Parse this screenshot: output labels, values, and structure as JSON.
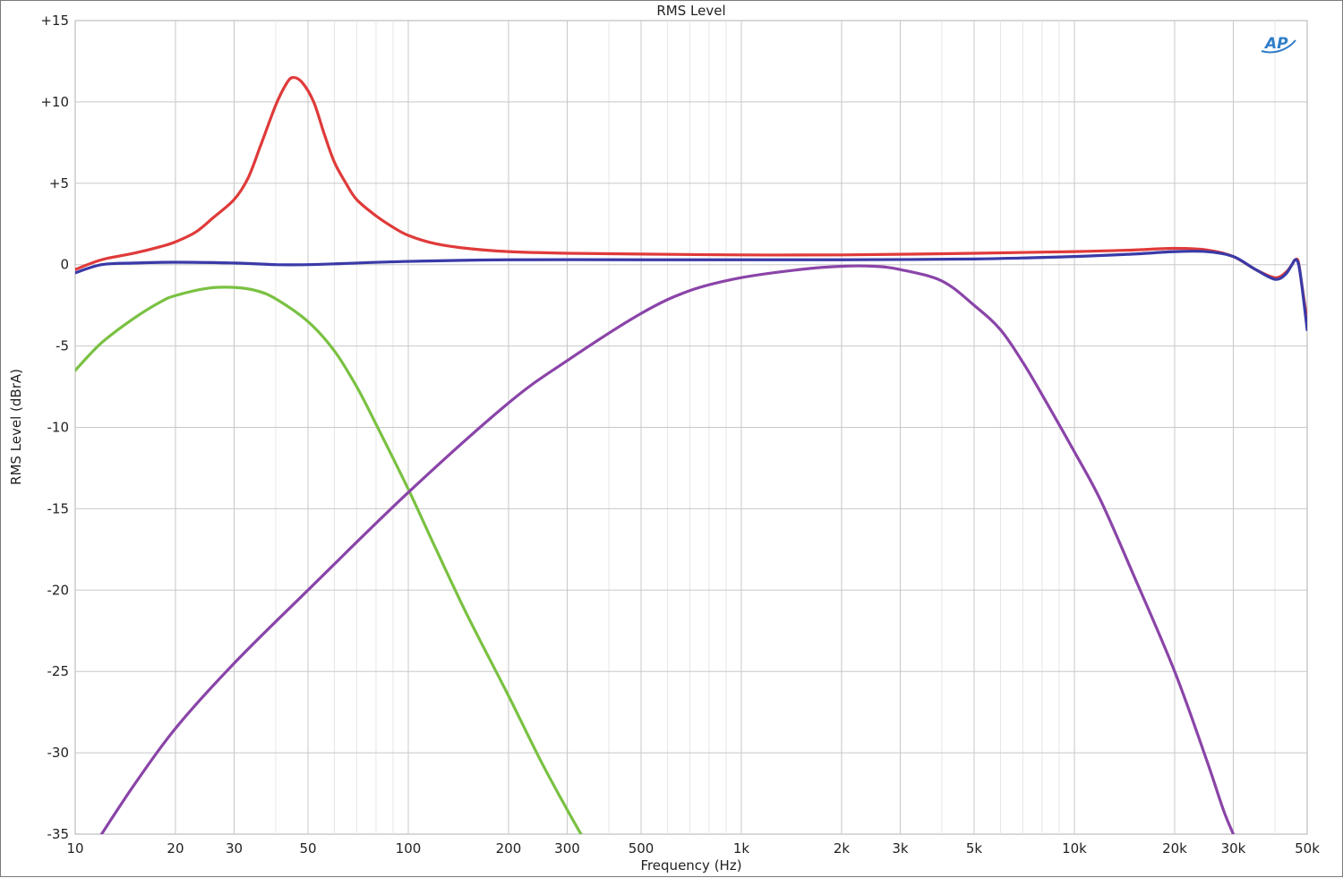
{
  "chart_data": {
    "type": "line",
    "title": "RMS Level",
    "xlabel": "Frequency (Hz)",
    "ylabel": "RMS Level (dBrA)",
    "x_scale": "log",
    "xlim": [
      10,
      50000
    ],
    "ylim": [
      -35,
      15
    ],
    "grid": true,
    "x_ticks": [
      {
        "value": 10,
        "label": "10"
      },
      {
        "value": 20,
        "label": "20"
      },
      {
        "value": 30,
        "label": "30"
      },
      {
        "value": 50,
        "label": "50"
      },
      {
        "value": 100,
        "label": "100"
      },
      {
        "value": 200,
        "label": "200"
      },
      {
        "value": 300,
        "label": "300"
      },
      {
        "value": 500,
        "label": "500"
      },
      {
        "value": 1000,
        "label": "1k"
      },
      {
        "value": 2000,
        "label": "2k"
      },
      {
        "value": 3000,
        "label": "3k"
      },
      {
        "value": 5000,
        "label": "5k"
      },
      {
        "value": 10000,
        "label": "10k"
      },
      {
        "value": 20000,
        "label": "20k"
      },
      {
        "value": 30000,
        "label": "30k"
      },
      {
        "value": 50000,
        "label": "50k"
      }
    ],
    "y_ticks": [
      {
        "value": 15,
        "label": "+15"
      },
      {
        "value": 10,
        "label": "+10"
      },
      {
        "value": 5,
        "label": "+5"
      },
      {
        "value": 0,
        "label": "0"
      },
      {
        "value": -5,
        "label": "-5"
      },
      {
        "value": -10,
        "label": "-10"
      },
      {
        "value": -15,
        "label": "-15"
      },
      {
        "value": -20,
        "label": "-20"
      },
      {
        "value": -25,
        "label": "-25"
      },
      {
        "value": -30,
        "label": "-30"
      },
      {
        "value": -35,
        "label": "-35"
      }
    ],
    "series": [
      {
        "color": "#e03a3a",
        "points": [
          [
            10,
            -0.3
          ],
          [
            12,
            0.3
          ],
          [
            15,
            0.7
          ],
          [
            18,
            1.1
          ],
          [
            20,
            1.4
          ],
          [
            23,
            2.0
          ],
          [
            26,
            2.9
          ],
          [
            30,
            4.0
          ],
          [
            33,
            5.3
          ],
          [
            36,
            7.3
          ],
          [
            40,
            9.8
          ],
          [
            43,
            11.1
          ],
          [
            45,
            11.5
          ],
          [
            48,
            11.2
          ],
          [
            52,
            10.0
          ],
          [
            56,
            8.0
          ],
          [
            60,
            6.3
          ],
          [
            65,
            5.0
          ],
          [
            70,
            4.0
          ],
          [
            80,
            3.0
          ],
          [
            90,
            2.3
          ],
          [
            100,
            1.8
          ],
          [
            120,
            1.3
          ],
          [
            150,
            1.0
          ],
          [
            200,
            0.8
          ],
          [
            300,
            0.7
          ],
          [
            500,
            0.65
          ],
          [
            1000,
            0.6
          ],
          [
            2000,
            0.6
          ],
          [
            5000,
            0.7
          ],
          [
            10000,
            0.8
          ],
          [
            15000,
            0.9
          ],
          [
            20000,
            1.0
          ],
          [
            25000,
            0.9
          ],
          [
            30000,
            0.5
          ],
          [
            35000,
            -0.3
          ],
          [
            40000,
            -0.8
          ],
          [
            43000,
            -0.5
          ],
          [
            45000,
            0.0
          ],
          [
            46000,
            0.3
          ],
          [
            47000,
            0.2
          ],
          [
            48000,
            -1.0
          ],
          [
            50000,
            -3.5
          ]
        ]
      },
      {
        "color": "#3a3aa8",
        "points": [
          [
            10,
            -0.5
          ],
          [
            12,
            0.0
          ],
          [
            15,
            0.1
          ],
          [
            20,
            0.15
          ],
          [
            30,
            0.1
          ],
          [
            40,
            0.0
          ],
          [
            50,
            0.0
          ],
          [
            60,
            0.05
          ],
          [
            100,
            0.2
          ],
          [
            200,
            0.3
          ],
          [
            500,
            0.3
          ],
          [
            1000,
            0.3
          ],
          [
            2000,
            0.3
          ],
          [
            5000,
            0.35
          ],
          [
            10000,
            0.5
          ],
          [
            15000,
            0.65
          ],
          [
            20000,
            0.8
          ],
          [
            25000,
            0.8
          ],
          [
            30000,
            0.5
          ],
          [
            35000,
            -0.3
          ],
          [
            40000,
            -0.9
          ],
          [
            43000,
            -0.6
          ],
          [
            45000,
            0.0
          ],
          [
            46000,
            0.3
          ],
          [
            47000,
            0.1
          ],
          [
            48000,
            -1.0
          ],
          [
            50000,
            -4.0
          ]
        ]
      },
      {
        "color": "#7ac142",
        "points": [
          [
            10,
            -6.5
          ],
          [
            12,
            -4.8
          ],
          [
            15,
            -3.3
          ],
          [
            18,
            -2.3
          ],
          [
            20,
            -1.9
          ],
          [
            25,
            -1.45
          ],
          [
            30,
            -1.4
          ],
          [
            35,
            -1.6
          ],
          [
            40,
            -2.1
          ],
          [
            50,
            -3.5
          ],
          [
            60,
            -5.3
          ],
          [
            70,
            -7.5
          ],
          [
            80,
            -9.8
          ],
          [
            100,
            -13.8
          ],
          [
            120,
            -17.3
          ],
          [
            150,
            -21.5
          ],
          [
            200,
            -26.5
          ],
          [
            250,
            -30.5
          ],
          [
            300,
            -33.5
          ],
          [
            330,
            -35.0
          ]
        ]
      },
      {
        "color": "#8a44a8",
        "points": [
          [
            12,
            -35
          ],
          [
            15,
            -32
          ],
          [
            20,
            -28.5
          ],
          [
            30,
            -24.5
          ],
          [
            50,
            -20
          ],
          [
            100,
            -14
          ],
          [
            200,
            -8.5
          ],
          [
            300,
            -5.9
          ],
          [
            500,
            -3.0
          ],
          [
            700,
            -1.6
          ],
          [
            1000,
            -0.8
          ],
          [
            1500,
            -0.3
          ],
          [
            2000,
            -0.1
          ],
          [
            2500,
            -0.1
          ],
          [
            3000,
            -0.3
          ],
          [
            4000,
            -1.0
          ],
          [
            5000,
            -2.5
          ],
          [
            6000,
            -4.0
          ],
          [
            7000,
            -6.0
          ],
          [
            8000,
            -8.0
          ],
          [
            10000,
            -11.5
          ],
          [
            12000,
            -14.5
          ],
          [
            15000,
            -19
          ],
          [
            20000,
            -25
          ],
          [
            25000,
            -30.5
          ],
          [
            28000,
            -33.5
          ],
          [
            30000,
            -35.0
          ]
        ]
      }
    ]
  },
  "logo": {
    "text": "AP"
  }
}
